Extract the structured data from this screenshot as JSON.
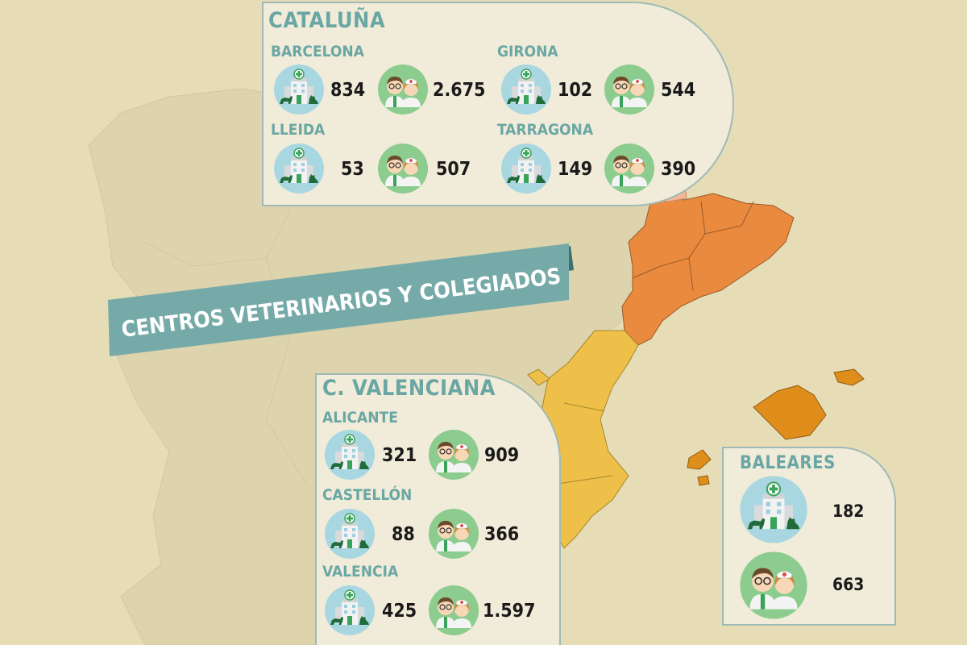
{
  "title": "CENTROS VETERINARIOS Y COLEGIADOS",
  "colors": {
    "background": "#e6ddb7",
    "land": "#ddd3ad",
    "catalonia": "#e98a3e",
    "valencia": "#eec04a",
    "baleares": "#df8e1c",
    "panel": "#f1ecd9",
    "accent": "#6aa7a4",
    "banner": "#75aaa8",
    "clinic_icon_bg": "#a9d7e1",
    "vet_icon_bg": "#8ccc8e"
  },
  "icons": {
    "clinic": "vet-clinic-icon",
    "staff": "veterinarians-icon"
  },
  "regions": {
    "cataluna": {
      "name": "CATALUÑA",
      "provinces": [
        {
          "name": "BARCELONA",
          "centros": "834",
          "colegiados": "2.675"
        },
        {
          "name": "GIRONA",
          "centros": "102",
          "colegiados": "544"
        },
        {
          "name": "LLEIDA",
          "centros": "53",
          "colegiados": "507"
        },
        {
          "name": "TARRAGONA",
          "centros": "149",
          "colegiados": "390"
        }
      ]
    },
    "valenciana": {
      "name": "C. VALENCIANA",
      "provinces": [
        {
          "name": "ALICANTE",
          "centros": "321",
          "colegiados": "909"
        },
        {
          "name": "CASTELLÓN",
          "centros": "88",
          "colegiados": "366"
        },
        {
          "name": "VALENCIA",
          "centros": "425",
          "colegiados": "1.597"
        }
      ]
    },
    "baleares": {
      "name": "BALEARES",
      "centros": "182",
      "colegiados": "663"
    }
  }
}
